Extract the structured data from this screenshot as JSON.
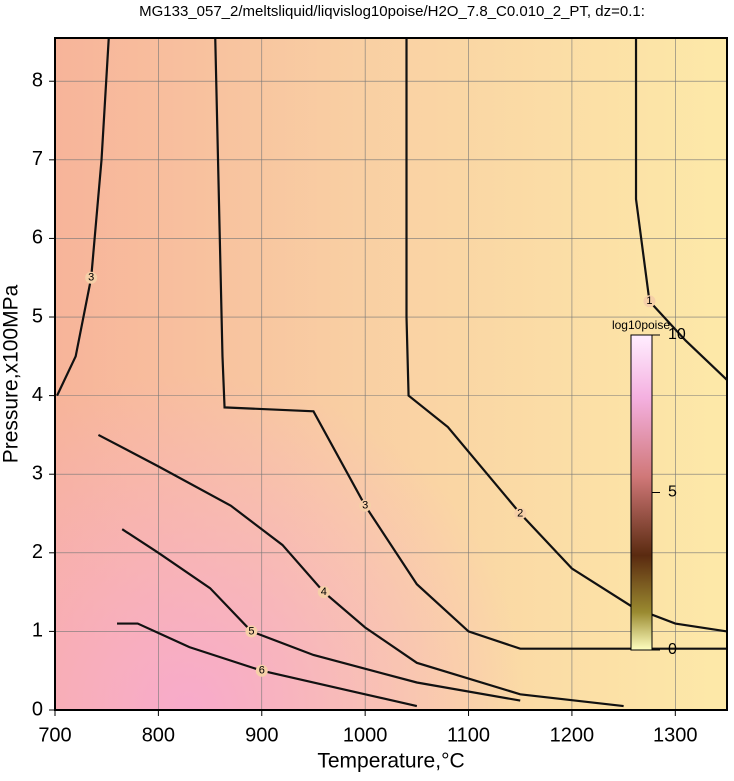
{
  "chart_data": {
    "type": "contour",
    "title": "MG133_057_2/meltsliquid/liqvislog10poise/H2O_7.8_C0.010_2_PT, dz=0.1:",
    "xlabel": "Temperature,°C",
    "ylabel": "Pressure,x100MPa",
    "xlim": [
      700,
      1350
    ],
    "ylim": [
      0,
      8.55
    ],
    "xticks": [
      700,
      800,
      900,
      1000,
      1100,
      1200,
      1300
    ],
    "yticks": [
      0,
      1,
      2,
      3,
      4,
      5,
      6,
      7,
      8
    ],
    "grid": true,
    "contours": [
      {
        "level": 1,
        "x": [
          1262,
          1262,
          1275,
          1310,
          1350
        ],
        "y": [
          8.55,
          6.5,
          5.2,
          4.7,
          4.2
        ]
      },
      {
        "level": 2,
        "x": [
          1040,
          1040,
          1042,
          1080,
          1150,
          1200,
          1260,
          1300,
          1350
        ],
        "y": [
          8.55,
          5.0,
          4.0,
          3.6,
          2.5,
          1.8,
          1.3,
          1.1,
          1.0
        ]
      },
      {
        "level": 3,
        "x": [
          855,
          862,
          864,
          950,
          1000,
          1050,
          1100,
          1150,
          1350
        ],
        "y": [
          8.55,
          4.5,
          3.85,
          3.8,
          2.6,
          1.6,
          1.0,
          0.78,
          0.78
        ]
      },
      {
        "level": 3,
        "x": [
          702,
          720,
          735,
          745,
          752
        ],
        "y": [
          4.0,
          4.5,
          5.5,
          7.0,
          8.55
        ]
      },
      {
        "level": 4,
        "x": [
          742,
          800,
          870,
          920,
          960,
          1000,
          1050,
          1150,
          1250
        ],
        "y": [
          3.5,
          3.1,
          2.6,
          2.1,
          1.5,
          1.05,
          0.6,
          0.2,
          0.05
        ]
      },
      {
        "level": 5,
        "x": [
          765,
          800,
          850,
          890,
          950,
          1050,
          1150
        ],
        "y": [
          2.3,
          2.0,
          1.55,
          1.0,
          0.7,
          0.35,
          0.12
        ]
      },
      {
        "level": 6,
        "x": [
          760,
          780,
          830,
          900,
          1000,
          1050
        ],
        "y": [
          1.1,
          1.1,
          0.8,
          0.5,
          0.2,
          0.05
        ]
      }
    ],
    "colorbar": {
      "label": "log10poise",
      "lim": [
        0,
        10
      ],
      "ticks": [
        0,
        5,
        10
      ]
    }
  }
}
